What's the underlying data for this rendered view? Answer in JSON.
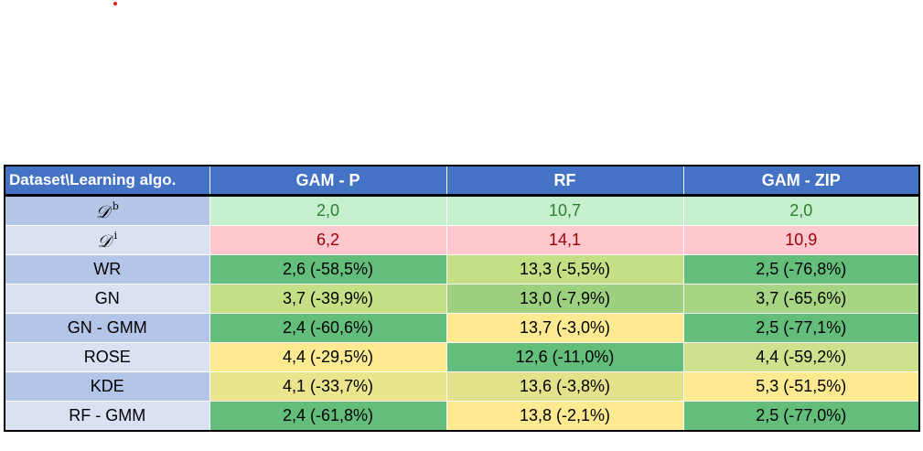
{
  "table": {
    "corner_header": "Dataset\\Learning algo.",
    "columns": [
      "GAM - P",
      "RF",
      "GAM - ZIP"
    ],
    "reference_rows": [
      {
        "label": "𝒟",
        "superscript": "b",
        "values": [
          "2,0",
          "10,7",
          "2,0"
        ]
      },
      {
        "label": "𝒟",
        "superscript": "i",
        "values": [
          "6,2",
          "14,1",
          "10,9"
        ]
      }
    ],
    "rows": [
      {
        "label": "WR",
        "values": [
          "2,6  (-58,5%)",
          "13,3  (-5,5%)",
          "2,5  (-76,8%)"
        ],
        "colors": [
          "#63be7b",
          "#c4df84",
          "#63be7b"
        ]
      },
      {
        "label": "GN",
        "values": [
          "3,7  (-39,9%)",
          "13,0  (-7,9%)",
          "3,7  (-65,6%)"
        ],
        "colors": [
          "#c4df84",
          "#9dd17f",
          "#a6d482"
        ]
      },
      {
        "label": "GN - GMM",
        "values": [
          "2,4  (-60,6%)",
          "13,7  (-3,0%)",
          "2,5  (-77,1%)"
        ],
        "colors": [
          "#63be7b",
          "#fde990",
          "#63be7b"
        ]
      },
      {
        "label": "ROSE",
        "values": [
          "4,4  (-29,5%)",
          "12,6  (-11,0%)",
          "4,4  (-59,2%)"
        ],
        "colors": [
          "#fde990",
          "#63be7b",
          "#cfe18c"
        ]
      },
      {
        "label": "KDE",
        "values": [
          "4,1  (-33,7%)",
          "13,6  (-3,8%)",
          "5,3  (-51,5%)"
        ],
        "colors": [
          "#eae48c",
          "#e2e28a",
          "#fde990"
        ]
      },
      {
        "label": "RF - GMM",
        "values": [
          "2,4  (-61,8%)",
          "13,8  (-2,1%)",
          "2,5  (-77,0%)"
        ],
        "colors": [
          "#63be7b",
          "#fde990",
          "#63be7b"
        ]
      }
    ]
  }
}
